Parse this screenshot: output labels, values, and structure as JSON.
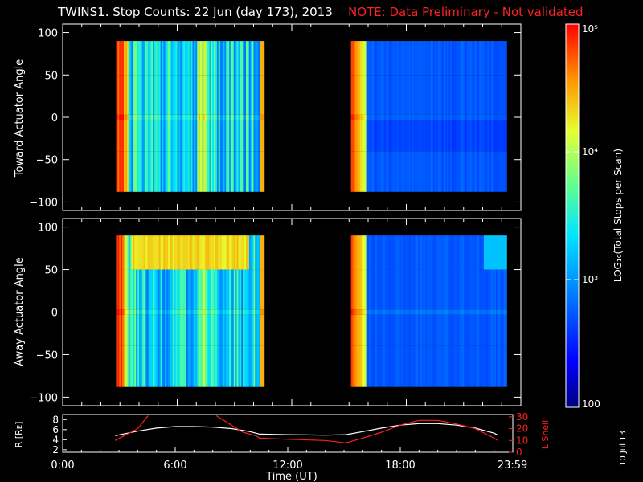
{
  "header": {
    "title": "TWINS1. Stop Counts: 22 Jun (day 173), 2013",
    "note": "NOTE: Data Preliminary - Not validated",
    "note_color": "#ff2222"
  },
  "date_stamp": "10 Jul 13",
  "chart_data": [
    {
      "type": "heatmap",
      "ylabel": "Toward Actuator Angle",
      "ylim": [
        -110,
        110
      ],
      "yticks": [
        100,
        50,
        0,
        -50,
        -100
      ],
      "xlim": [
        0,
        24
      ],
      "data_intervals_hours": [
        [
          2.8,
          10.5
        ],
        [
          15.1,
          23.2
        ]
      ],
      "angle_range": [
        -88,
        90
      ],
      "zlim_log10": [
        2,
        5
      ]
    },
    {
      "type": "heatmap",
      "ylabel": "Away Actuator Angle",
      "ylim": [
        -110,
        110
      ],
      "yticks": [
        100,
        50,
        0,
        -50,
        -100
      ],
      "xlim": [
        0,
        24
      ],
      "data_intervals_hours": [
        [
          2.8,
          10.5
        ],
        [
          15.1,
          23.2
        ]
      ],
      "angle_range": [
        -88,
        90
      ],
      "zlim_log10": [
        2,
        5
      ]
    },
    {
      "type": "line",
      "xlabel": "Time (UT)",
      "xlim": [
        0,
        24
      ],
      "xtick_labels": [
        "0:00",
        "6:00",
        "12:00",
        "18:00",
        "23:59"
      ],
      "xtick_hours": [
        0,
        6,
        12,
        18,
        23.98
      ],
      "ylabel_left": "R [Rᴇ]",
      "yticks_left": [
        "2",
        "4",
        "6",
        "8"
      ],
      "ylim_left": [
        1.5,
        9
      ],
      "ylabel_right": "L Shell",
      "yticks_right": [
        "0",
        "10",
        "20",
        "30"
      ],
      "ylim_right": [
        0,
        32
      ],
      "series": [
        {
          "axis": "left",
          "color": "#ffffff",
          "x": [
            2.8,
            4.0,
            5.0,
            6.0,
            7.0,
            8.0,
            9.0,
            10.0,
            10.5,
            12.0,
            14.0,
            15.1,
            16.0,
            17.0,
            18.0,
            19.0,
            20.0,
            21.0,
            22.0,
            23.0,
            23.2
          ],
          "y": [
            4.8,
            5.7,
            6.3,
            6.6,
            6.6,
            6.5,
            6.2,
            5.6,
            5.1,
            5.0,
            4.9,
            5.0,
            5.6,
            6.3,
            6.9,
            7.2,
            7.2,
            6.9,
            6.3,
            5.3,
            4.9
          ]
        },
        {
          "axis": "right",
          "color": "#ff2020",
          "x": [
            2.8,
            4.0,
            4.55,
            null,
            8.2,
            9.0,
            9.6,
            10.3,
            10.5,
            12.0,
            14.0,
            15.1,
            16.0,
            17.0,
            18.0,
            19.0,
            20.0,
            21.0,
            22.0,
            23.0,
            23.2
          ],
          "y": [
            10,
            20,
            31,
            null,
            31,
            23,
            17,
            14,
            12,
            11,
            10,
            8,
            12,
            17,
            23,
            27,
            27,
            24,
            20,
            12,
            10
          ]
        }
      ]
    }
  ],
  "colorbar": {
    "label": "LOG₁₀(Total Stops per Scan)",
    "ticks": [
      {
        "label": "100",
        "log": 2
      },
      {
        "label": "10³",
        "log": 3
      },
      {
        "label": "10⁴",
        "log": 4
      },
      {
        "label": "10⁵",
        "log": 5
      }
    ]
  }
}
